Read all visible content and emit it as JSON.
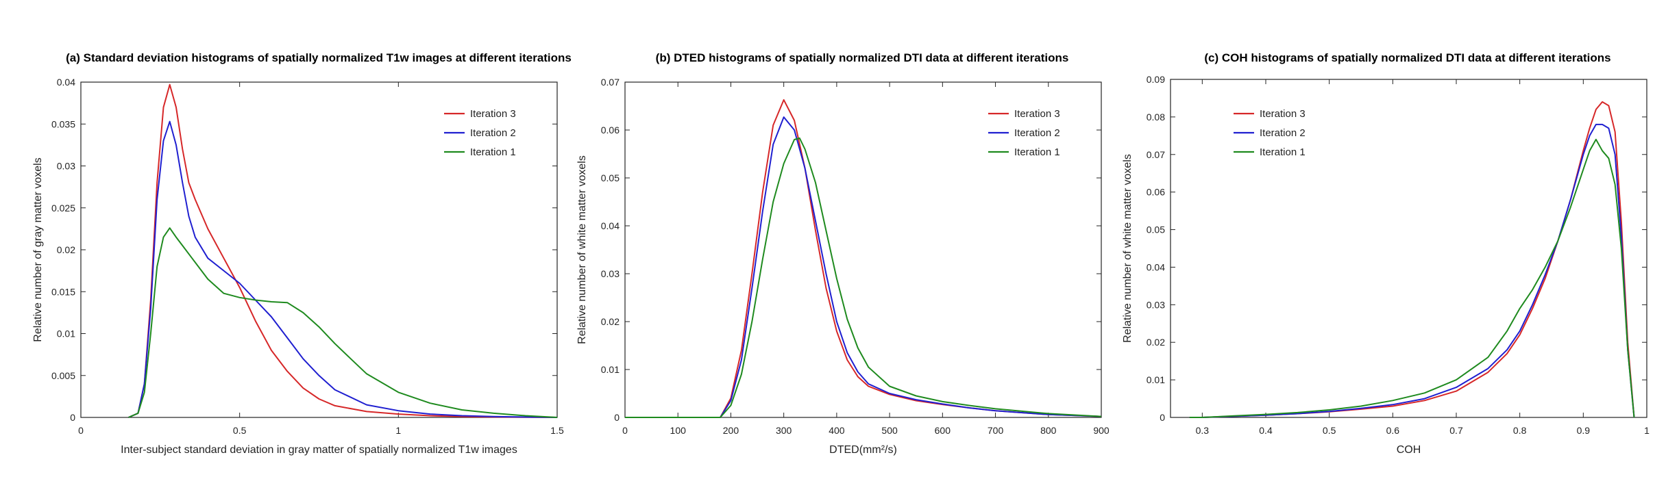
{
  "chart_data": [
    {
      "type": "line",
      "title": "(a) Standard deviation histograms of spatially normalized T1w images at different iterations",
      "xlabel": "Inter-subject standard deviation in gray matter of spatially normalized T1w images",
      "ylabel": "Relative number of gray matter voxels",
      "xlim": [
        0,
        1.5
      ],
      "ylim": [
        0,
        0.04
      ],
      "xticks": [
        0,
        0.5,
        1,
        1.5
      ],
      "xtick_labels": [
        "0",
        "0.5",
        "1",
        "1.5"
      ],
      "yticks": [
        0,
        0.005,
        0.01,
        0.015,
        0.02,
        0.025,
        0.03,
        0.035,
        0.04
      ],
      "ytick_labels": [
        "0",
        "0.005",
        "0.01",
        "0.015",
        "0.02",
        "0.025",
        "0.03",
        "0.035",
        "0.04"
      ],
      "legend_position": "top-right",
      "series": [
        {
          "name": "Iteration 3",
          "color": "#d62728",
          "x": [
            0.15,
            0.18,
            0.2,
            0.22,
            0.24,
            0.26,
            0.28,
            0.3,
            0.32,
            0.34,
            0.36,
            0.4,
            0.45,
            0.5,
            0.55,
            0.6,
            0.65,
            0.7,
            0.75,
            0.8,
            0.9,
            1.0,
            1.1,
            1.2,
            1.3,
            1.5
          ],
          "y": [
            0,
            0.0005,
            0.004,
            0.014,
            0.028,
            0.037,
            0.0397,
            0.037,
            0.032,
            0.028,
            0.026,
            0.0225,
            0.019,
            0.0155,
            0.0115,
            0.008,
            0.0055,
            0.0035,
            0.0022,
            0.0014,
            0.0007,
            0.0004,
            0.0002,
            0.0001,
            5e-05,
            0
          ]
        },
        {
          "name": "Iteration 2",
          "color": "#1f1fd0",
          "x": [
            0.15,
            0.18,
            0.2,
            0.22,
            0.24,
            0.26,
            0.28,
            0.3,
            0.32,
            0.34,
            0.36,
            0.4,
            0.45,
            0.5,
            0.55,
            0.6,
            0.65,
            0.7,
            0.75,
            0.8,
            0.9,
            1.0,
            1.1,
            1.2,
            1.3,
            1.5
          ],
          "y": [
            0,
            0.0005,
            0.004,
            0.013,
            0.026,
            0.033,
            0.0353,
            0.0325,
            0.028,
            0.024,
            0.0215,
            0.019,
            0.0175,
            0.016,
            0.014,
            0.012,
            0.0095,
            0.007,
            0.005,
            0.0033,
            0.0015,
            0.0008,
            0.0004,
            0.0002,
            0.0001,
            0
          ]
        },
        {
          "name": "Iteration 1",
          "color": "#1e8a1e",
          "x": [
            0.15,
            0.18,
            0.2,
            0.22,
            0.24,
            0.26,
            0.28,
            0.3,
            0.32,
            0.35,
            0.4,
            0.45,
            0.5,
            0.55,
            0.6,
            0.65,
            0.7,
            0.75,
            0.8,
            0.85,
            0.9,
            1.0,
            1.1,
            1.2,
            1.3,
            1.4,
            1.5
          ],
          "y": [
            0,
            0.0005,
            0.003,
            0.01,
            0.018,
            0.0215,
            0.0226,
            0.0215,
            0.0205,
            0.019,
            0.0165,
            0.0148,
            0.0143,
            0.014,
            0.0138,
            0.0137,
            0.0125,
            0.0108,
            0.0088,
            0.007,
            0.0052,
            0.003,
            0.0017,
            0.0009,
            0.0005,
            0.0002,
            0
          ]
        }
      ]
    },
    {
      "type": "line",
      "title": "(b) DTED histograms of spatially normalized DTI data at different iterations",
      "xlabel": "DTED(mm²/s)",
      "ylabel": "Relative number of white matter voxels",
      "xlim": [
        0,
        900
      ],
      "ylim": [
        0,
        0.07
      ],
      "xticks": [
        0,
        100,
        200,
        300,
        400,
        500,
        600,
        700,
        800,
        900
      ],
      "xtick_labels": [
        "0",
        "100",
        "200",
        "300",
        "400",
        "500",
        "600",
        "700",
        "800",
        "900"
      ],
      "yticks": [
        0,
        0.01,
        0.02,
        0.03,
        0.04,
        0.05,
        0.06,
        0.07
      ],
      "ytick_labels": [
        "0",
        "0.01",
        "0.02",
        "0.03",
        "0.04",
        "0.05",
        "0.06",
        "0.07"
      ],
      "legend_position": "top-right",
      "series": [
        {
          "name": "Iteration 3",
          "color": "#d62728",
          "x": [
            0,
            180,
            200,
            220,
            240,
            260,
            280,
            300,
            320,
            340,
            360,
            380,
            400,
            420,
            440,
            460,
            500,
            550,
            600,
            650,
            700,
            800,
            900
          ],
          "y": [
            0,
            0,
            0.004,
            0.014,
            0.03,
            0.047,
            0.061,
            0.0663,
            0.062,
            0.052,
            0.039,
            0.027,
            0.018,
            0.012,
            0.0085,
            0.0065,
            0.0048,
            0.0035,
            0.0027,
            0.002,
            0.0014,
            0.0006,
            0.0002
          ]
        },
        {
          "name": "Iteration 2",
          "color": "#1f1fd0",
          "x": [
            0,
            180,
            200,
            220,
            240,
            260,
            280,
            300,
            320,
            340,
            360,
            380,
            400,
            420,
            440,
            460,
            500,
            550,
            600,
            650,
            700,
            800,
            900
          ],
          "y": [
            0,
            0,
            0.0035,
            0.012,
            0.027,
            0.043,
            0.057,
            0.0627,
            0.06,
            0.052,
            0.041,
            0.03,
            0.02,
            0.0135,
            0.0095,
            0.007,
            0.005,
            0.0037,
            0.0028,
            0.002,
            0.0014,
            0.0006,
            0.0002
          ]
        },
        {
          "name": "Iteration 1",
          "color": "#1e8a1e",
          "x": [
            0,
            180,
            200,
            220,
            240,
            260,
            280,
            300,
            320,
            330,
            340,
            360,
            380,
            400,
            420,
            440,
            460,
            500,
            550,
            600,
            650,
            700,
            800,
            900
          ],
          "y": [
            0,
            0,
            0.0025,
            0.009,
            0.02,
            0.033,
            0.045,
            0.053,
            0.058,
            0.0583,
            0.056,
            0.049,
            0.039,
            0.029,
            0.0205,
            0.0145,
            0.0105,
            0.0065,
            0.0045,
            0.0033,
            0.0025,
            0.0018,
            0.0008,
            0.0002
          ]
        }
      ]
    },
    {
      "type": "line",
      "title": "(c) COH histograms of spatially normalized DTI data at different iterations",
      "xlabel": "COH",
      "ylabel": "Relative number of white matter voxels",
      "xlim": [
        0.25,
        1
      ],
      "ylim": [
        0,
        0.09
      ],
      "xticks": [
        0.3,
        0.4,
        0.5,
        0.6,
        0.7,
        0.8,
        0.9,
        1
      ],
      "xtick_labels": [
        "0.3",
        "0.4",
        "0.5",
        "0.6",
        "0.7",
        "0.8",
        "0.9",
        "1"
      ],
      "yticks": [
        0,
        0.01,
        0.02,
        0.03,
        0.04,
        0.05,
        0.06,
        0.07,
        0.08,
        0.09
      ],
      "ytick_labels": [
        "0",
        "0.01",
        "0.02",
        "0.03",
        "0.04",
        "0.05",
        "0.06",
        "0.07",
        "0.08",
        "0.09"
      ],
      "legend_position": "top-left",
      "series": [
        {
          "name": "Iteration 3",
          "color": "#d62728",
          "x": [
            0.28,
            0.3,
            0.35,
            0.4,
            0.45,
            0.5,
            0.55,
            0.6,
            0.65,
            0.7,
            0.75,
            0.78,
            0.8,
            0.82,
            0.84,
            0.86,
            0.88,
            0.9,
            0.91,
            0.92,
            0.93,
            0.94,
            0.95,
            0.96,
            0.97,
            0.98
          ],
          "y": [
            0,
            0,
            0.0003,
            0.0006,
            0.001,
            0.0015,
            0.0022,
            0.003,
            0.0045,
            0.007,
            0.012,
            0.017,
            0.022,
            0.029,
            0.037,
            0.047,
            0.058,
            0.071,
            0.077,
            0.082,
            0.084,
            0.083,
            0.076,
            0.052,
            0.02,
            0
          ]
        },
        {
          "name": "Iteration 2",
          "color": "#1f1fd0",
          "x": [
            0.28,
            0.3,
            0.35,
            0.4,
            0.45,
            0.5,
            0.55,
            0.6,
            0.65,
            0.7,
            0.75,
            0.78,
            0.8,
            0.82,
            0.84,
            0.86,
            0.88,
            0.9,
            0.91,
            0.92,
            0.93,
            0.94,
            0.95,
            0.96,
            0.97,
            0.98
          ],
          "y": [
            0,
            0,
            0.0003,
            0.0006,
            0.001,
            0.0016,
            0.0024,
            0.0034,
            0.005,
            0.008,
            0.013,
            0.018,
            0.023,
            0.03,
            0.038,
            0.047,
            0.058,
            0.07,
            0.075,
            0.078,
            0.078,
            0.077,
            0.07,
            0.048,
            0.018,
            0
          ]
        },
        {
          "name": "Iteration 1",
          "color": "#1e8a1e",
          "x": [
            0.28,
            0.3,
            0.35,
            0.4,
            0.45,
            0.5,
            0.55,
            0.6,
            0.65,
            0.7,
            0.75,
            0.78,
            0.8,
            0.82,
            0.84,
            0.86,
            0.88,
            0.9,
            0.91,
            0.92,
            0.93,
            0.94,
            0.95,
            0.96,
            0.97,
            0.98
          ],
          "y": [
            0,
            0,
            0.0004,
            0.0008,
            0.0013,
            0.002,
            0.003,
            0.0045,
            0.0065,
            0.01,
            0.016,
            0.023,
            0.029,
            0.034,
            0.04,
            0.047,
            0.056,
            0.066,
            0.071,
            0.074,
            0.071,
            0.069,
            0.062,
            0.045,
            0.018,
            0
          ]
        }
      ]
    }
  ]
}
